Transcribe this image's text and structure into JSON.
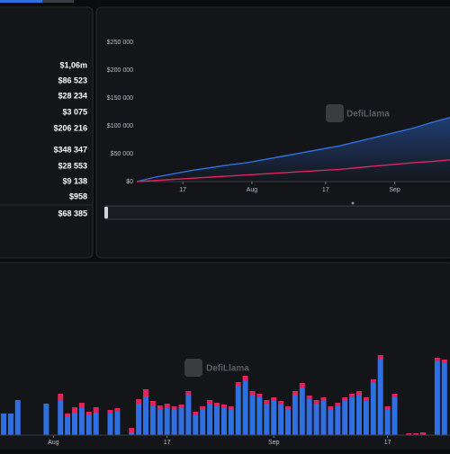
{
  "stats": [
    "$1,06m",
    "$86 523",
    "$28 234",
    "$3 075",
    "$206 216",
    "$348 347",
    "$28 553",
    "$9 138",
    "$958",
    "$68 385"
  ],
  "watermark": "DefiLlama",
  "chart_data": [
    {
      "type": "line",
      "x": [
        0,
        4,
        8,
        12,
        16,
        20,
        24,
        28,
        32,
        36,
        40,
        44,
        48,
        52,
        56,
        60,
        64,
        68
      ],
      "xlim": [
        0,
        68
      ],
      "xticks": [
        {
          "value": 10,
          "label": "17"
        },
        {
          "value": 25,
          "label": "Aug"
        },
        {
          "value": 41,
          "label": "17"
        },
        {
          "value": 56,
          "label": "Sep"
        }
      ],
      "ylim": [
        0,
        250000
      ],
      "yticks": [
        {
          "value": 0,
          "label": "$0"
        },
        {
          "value": 50000,
          "label": "$50 000"
        },
        {
          "value": 100000,
          "label": "$100 000"
        },
        {
          "value": 150000,
          "label": "$150 000"
        },
        {
          "value": 200000,
          "label": "$200 000"
        },
        {
          "value": 250000,
          "label": "$250 000"
        }
      ],
      "series": [
        {
          "color": "#2f6fe0",
          "values": [
            0,
            8000,
            14000,
            20000,
            25000,
            30000,
            34000,
            40000,
            46000,
            52000,
            58000,
            64000,
            72000,
            80000,
            88000,
            96000,
            106000,
            115000
          ]
        },
        {
          "color": "#e0245e",
          "values": [
            0,
            2000,
            4000,
            6000,
            8000,
            10000,
            12000,
            14000,
            16000,
            18000,
            20000,
            22000,
            25000,
            28000,
            31000,
            34000,
            36000,
            39000
          ]
        }
      ]
    },
    {
      "type": "bar",
      "stacked": true,
      "categories": [
        null,
        null,
        null,
        null,
        null,
        null,
        null,
        "Aug",
        null,
        null,
        null,
        null,
        null,
        null,
        null,
        null,
        null,
        null,
        null,
        null,
        null,
        null,
        null,
        "17",
        null,
        null,
        null,
        null,
        null,
        null,
        null,
        null,
        null,
        null,
        null,
        null,
        null,
        null,
        "Sep",
        null,
        null,
        null,
        null,
        null,
        null,
        null,
        null,
        null,
        null,
        null,
        null,
        null,
        null,
        null,
        "17",
        null,
        null,
        null,
        null,
        null,
        null,
        null,
        null
      ],
      "ylim": [
        0,
        100
      ],
      "series": [
        {
          "color": "#2f6fe0",
          "values": [
            24,
            24,
            39,
            0,
            0,
            0,
            35,
            0,
            38,
            20,
            25,
            30,
            22,
            25,
            0,
            24,
            26,
            0,
            3,
            35,
            43,
            32,
            28,
            30,
            28,
            30,
            45,
            22,
            28,
            35,
            32,
            30,
            28,
            55,
            60,
            45,
            42,
            35,
            38,
            34,
            28,
            45,
            52,
            40,
            35,
            38,
            28,
            32,
            38,
            42,
            45,
            38,
            58,
            85,
            28,
            42,
            0,
            0,
            0,
            0,
            0,
            82,
            80
          ]
        },
        {
          "color": "#e0245e",
          "values": [
            0,
            0,
            0,
            0,
            0,
            0,
            0,
            0,
            8,
            4,
            6,
            6,
            4,
            6,
            0,
            4,
            4,
            0,
            5,
            5,
            8,
            6,
            5,
            5,
            4,
            4,
            4,
            4,
            4,
            4,
            4,
            4,
            4,
            4,
            6,
            4,
            4,
            4,
            4,
            4,
            4,
            4,
            6,
            4,
            4,
            4,
            4,
            4,
            4,
            4,
            4,
            4,
            4,
            4,
            4,
            4,
            0,
            2,
            2,
            3,
            0,
            4,
            4
          ]
        }
      ]
    }
  ]
}
